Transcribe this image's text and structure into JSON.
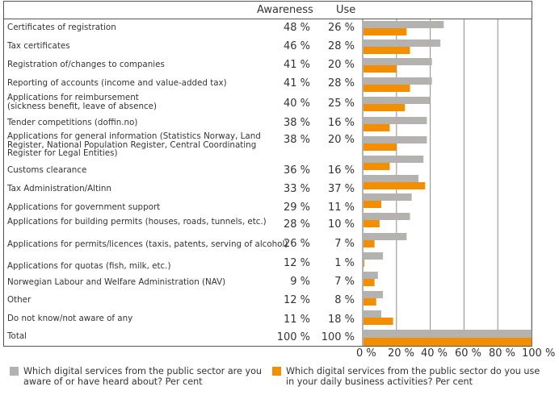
{
  "chart_data": {
    "type": "bar",
    "orientation": "horizontal",
    "title": "",
    "column_headers": [
      "Awareness",
      "Use"
    ],
    "categories": [
      "Certificates of registration",
      "Tax certificates",
      "Registration of/changes to companies",
      "Reporting of accounts (income and value-added tax)",
      "Applications for reimbursement\n(sickness benefit, leave of absence)",
      "Tender competitions (doffin.no)",
      "Applications for general information (Statistics Norway, Land\nRegister, National Population Register, Central Coordinating\nRegister for Legal Entities)",
      "Customs clearance",
      "Tax Administration/Altinn",
      "Applications for government support",
      "Applications for building permits (houses, roads, tunnels, etc.)",
      "Applications for permits/licences (taxis, patents, serving of alcohol)",
      "Applications for quotas (fish, milk, etc.)",
      "Norwegian Labour and Welfare Administration (NAV)",
      "Other",
      "Do not know/not aware of any",
      "Total"
    ],
    "series": [
      {
        "name": "Which digital services from the public sector are you aware of or have heard about? Per cent",
        "short_name": "Awareness",
        "color": "#b4b2ae",
        "values": [
          48,
          46,
          41,
          41,
          40,
          38,
          38,
          36,
          33,
          29,
          28,
          26,
          12,
          9,
          12,
          11,
          100
        ],
        "labels": [
          "48 %",
          "46 %",
          "41 %",
          "41 %",
          "40 %",
          "38 %",
          "38 %",
          "36 %",
          "33 %",
          "29 %",
          "28 %",
          "26 %",
          "12 %",
          "9 %",
          "12 %",
          "11 %",
          "100 %"
        ]
      },
      {
        "name": "Which digital services from the public sector do you use in your daily business activities?  Per cent",
        "short_name": "Use",
        "color": "#f28e00",
        "values": [
          26,
          28,
          20,
          28,
          25,
          16,
          20,
          16,
          37,
          11,
          10,
          7,
          1,
          7,
          8,
          18,
          100
        ],
        "labels": [
          "26 %",
          "28 %",
          "20 %",
          "28 %",
          "25 %",
          "16 %",
          "20 %",
          "16 %",
          "37 %",
          "11 %",
          "10 %",
          "7 %",
          "1 %",
          "7 %",
          "8 %",
          "18 %",
          "100 %"
        ]
      }
    ],
    "xlabel": "",
    "ylabel": "",
    "xlim": [
      0,
      100
    ],
    "x_ticks": [
      "0 %",
      "20 %",
      "40 %",
      "60 %",
      "80 %",
      "100 %"
    ],
    "grid": true,
    "legend_position": "bottom"
  },
  "legend": {
    "awareness_line1": "Which digital services from the public sector are you",
    "awareness_line2": "aware of or have heard about? Per cent",
    "use_line1": "Which digital services from the public sector do you use",
    "use_line2": "in your daily business activities?  Per cent"
  }
}
